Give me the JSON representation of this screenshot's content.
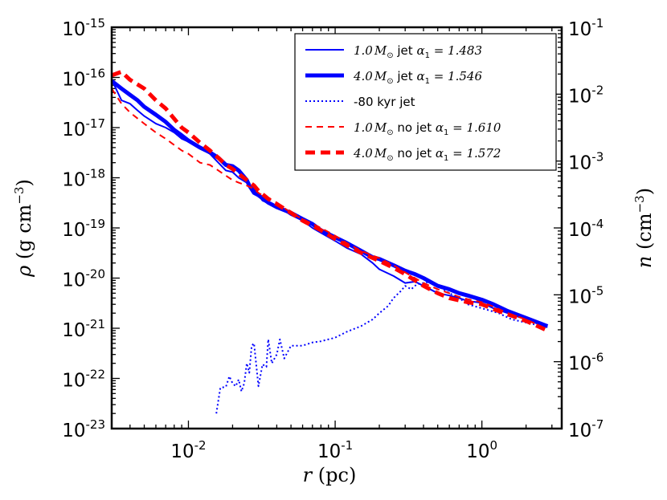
{
  "chart_data": {
    "type": "line",
    "xscale": "log",
    "yscale": "log",
    "xlim": [
      0.003,
      3.5
    ],
    "ylim": [
      1e-23,
      1e-15
    ],
    "y2lim": [
      1e-07,
      0.1
    ],
    "xlabel": "r (pc)",
    "ylabel": "ρ (g cm^-3)",
    "y2label": "n (cm^-3)",
    "x_ticks": [
      {
        "value": 0.01,
        "base": "10",
        "exp": "-2"
      },
      {
        "value": 0.1,
        "base": "10",
        "exp": "-1"
      },
      {
        "value": 1,
        "base": "10",
        "exp": "0"
      }
    ],
    "y_ticks": [
      {
        "value": 1e-15,
        "base": "10",
        "exp": "-15"
      },
      {
        "value": 1e-16,
        "base": "10",
        "exp": "-16"
      },
      {
        "value": 1e-17,
        "base": "10",
        "exp": "-17"
      },
      {
        "value": 1e-18,
        "base": "10",
        "exp": "-18"
      },
      {
        "value": 1e-19,
        "base": "10",
        "exp": "-19"
      },
      {
        "value": 1e-20,
        "base": "10",
        "exp": "-20"
      },
      {
        "value": 1e-21,
        "base": "10",
        "exp": "-21"
      },
      {
        "value": 1e-22,
        "base": "10",
        "exp": "-22"
      },
      {
        "value": 1e-23,
        "base": "10",
        "exp": "-23"
      }
    ],
    "y2_ticks": [
      {
        "value": 0.1,
        "base": "10",
        "exp": "-1"
      },
      {
        "value": 0.01,
        "base": "10",
        "exp": "-2"
      },
      {
        "value": 0.001,
        "base": "10",
        "exp": "-3"
      },
      {
        "value": 0.0001,
        "base": "10",
        "exp": "-4"
      },
      {
        "value": 1e-05,
        "base": "10",
        "exp": "-5"
      },
      {
        "value": 1e-06,
        "base": "10",
        "exp": "-6"
      },
      {
        "value": 1e-07,
        "base": "10",
        "exp": "-7"
      }
    ],
    "legend_position": "top-right",
    "series": [
      {
        "name": "1.0 M⊙ jet α1 = 1.483",
        "color": "#0000ff",
        "style": "solid",
        "weight": "thin",
        "x": [
          0.003,
          0.0035,
          0.004,
          0.0045,
          0.005,
          0.006,
          0.007,
          0.008,
          0.009,
          0.01,
          0.012,
          0.014,
          0.016,
          0.018,
          0.02,
          0.022,
          0.025,
          0.028,
          0.032,
          0.036,
          0.04,
          0.05,
          0.06,
          0.07,
          0.08,
          0.1,
          0.12,
          0.15,
          0.18,
          0.2,
          0.25,
          0.3,
          0.35,
          0.4,
          0.5,
          0.6,
          0.7,
          0.8,
          1.0,
          1.2,
          1.5,
          2.0,
          2.8
        ],
        "y": [
          9e-17,
          3.5e-17,
          3e-17,
          2.2e-17,
          1.7e-17,
          1.2e-17,
          1e-17,
          8e-18,
          6e-18,
          5.2e-18,
          4e-18,
          3e-18,
          2e-18,
          1.4e-18,
          1.3e-18,
          1e-18,
          8e-19,
          6e-19,
          3.5e-19,
          3e-19,
          2.8e-19,
          1.8e-19,
          1.4e-19,
          1e-19,
          8e-20,
          5.5e-20,
          4e-20,
          3e-20,
          2e-20,
          1.5e-20,
          1.1e-20,
          8e-21,
          8.5e-21,
          7e-21,
          5e-21,
          4.5e-21,
          4e-21,
          3.5e-21,
          3.2e-21,
          2.5e-21,
          2e-21,
          1.5e-21,
          1.05e-21
        ]
      },
      {
        "name": "4.0 M⊙ jet α1 = 1.546",
        "color": "#0000ff",
        "style": "solid",
        "weight": "thick",
        "x": [
          0.003,
          0.0035,
          0.004,
          0.0045,
          0.005,
          0.006,
          0.007,
          0.008,
          0.009,
          0.01,
          0.012,
          0.014,
          0.016,
          0.018,
          0.02,
          0.022,
          0.025,
          0.026,
          0.028,
          0.03,
          0.035,
          0.04,
          0.05,
          0.06,
          0.07,
          0.08,
          0.1,
          0.12,
          0.15,
          0.18,
          0.2,
          0.25,
          0.3,
          0.35,
          0.4,
          0.5,
          0.6,
          0.7,
          0.8,
          1.0,
          1.2,
          1.5,
          2.0,
          2.8
        ],
        "y": [
          8.5e-17,
          6e-17,
          4.5e-17,
          3.5e-17,
          2.6e-17,
          1.8e-17,
          1.3e-17,
          9e-18,
          7e-18,
          5.5e-18,
          4e-18,
          3.2e-18,
          2.5e-18,
          1.8e-18,
          1.7e-18,
          1.4e-18,
          9e-19,
          7e-19,
          5e-19,
          4.5e-19,
          3.2e-19,
          2.6e-19,
          2e-19,
          1.5e-19,
          1.2e-19,
          9e-20,
          6.5e-20,
          5e-20,
          3.5e-20,
          2.6e-20,
          2.4e-20,
          1.8e-20,
          1.4e-20,
          1.2e-20,
          1e-20,
          7e-21,
          6e-21,
          5e-21,
          4.5e-21,
          3.7e-21,
          3e-21,
          2.2e-21,
          1.6e-21,
          1.1e-21
        ]
      },
      {
        "name": "-80 kyr jet",
        "color": "#0000ff",
        "style": "dotted",
        "weight": "thin",
        "x": [
          0.0155,
          0.0165,
          0.018,
          0.019,
          0.02,
          0.021,
          0.022,
          0.023,
          0.024,
          0.025,
          0.026,
          0.027,
          0.028,
          0.03,
          0.032,
          0.034,
          0.035,
          0.037,
          0.04,
          0.042,
          0.045,
          0.05,
          0.06,
          0.07,
          0.08,
          0.1,
          0.12,
          0.15,
          0.18,
          0.2,
          0.23,
          0.25,
          0.28,
          0.3,
          0.33,
          0.36,
          0.4,
          0.45,
          0.5,
          0.6,
          0.7,
          0.8,
          1.0,
          1.3,
          1.6,
          2.0,
          2.8
        ],
        "y": [
          2e-23,
          6.5e-23,
          6.8e-23,
          1.1e-22,
          8e-23,
          7e-23,
          9.5e-23,
          5.5e-23,
          8e-23,
          2e-22,
          1.3e-22,
          4.5e-22,
          5e-22,
          7e-23,
          1.9e-22,
          1.7e-22,
          6e-22,
          2e-22,
          3e-22,
          6e-22,
          2.5e-22,
          4.5e-22,
          4.5e-22,
          5.2e-22,
          5.5e-22,
          6.5e-22,
          8.5e-22,
          1.1e-21,
          1.5e-21,
          2e-21,
          2.8e-21,
          4e-21,
          5.5e-21,
          7e-21,
          6e-21,
          7.5e-21,
          8e-21,
          8.5e-21,
          7e-21,
          5e-21,
          4e-21,
          3e-21,
          2.5e-21,
          2e-21,
          1.5e-21,
          1.3e-21,
          1.05e-21
        ]
      },
      {
        "name": "1.0 M⊙ no jet α1 = 1.610",
        "color": "#ff0000",
        "style": "dashed",
        "weight": "thin",
        "x": [
          0.003,
          0.0035,
          0.004,
          0.005,
          0.006,
          0.007,
          0.008,
          0.009,
          0.01,
          0.012,
          0.014,
          0.016,
          0.018,
          0.02,
          0.022,
          0.025,
          0.028,
          0.03,
          0.035,
          0.04,
          0.05,
          0.06,
          0.08,
          0.1,
          0.12,
          0.15,
          0.2,
          0.25,
          0.3,
          0.35,
          0.4,
          0.5,
          0.6,
          0.7,
          0.8,
          1.0,
          1.2,
          1.5,
          2.0,
          2.8
        ],
        "y": [
          6e-17,
          3e-17,
          2e-17,
          1.2e-17,
          8e-18,
          6e-18,
          4.5e-18,
          3.5e-18,
          3e-18,
          2e-18,
          1.8e-18,
          1.4e-18,
          1.1e-18,
          9e-19,
          8e-19,
          7e-19,
          6e-19,
          5e-19,
          3.8e-19,
          3.2e-19,
          2e-19,
          1.5e-19,
          1e-19,
          7e-20,
          5e-20,
          3.5e-20,
          2.5e-20,
          1.8e-20,
          1.3e-20,
          1e-20,
          8e-21,
          6e-21,
          5e-21,
          4.2e-21,
          3.8e-21,
          3.3e-21,
          2.7e-21,
          2e-21,
          1.5e-21,
          9.5e-22
        ]
      },
      {
        "name": "4.0 M⊙ no jet α1 = 1.572",
        "color": "#ff0000",
        "style": "dashed",
        "weight": "thick",
        "x": [
          0.003,
          0.0035,
          0.004,
          0.005,
          0.006,
          0.007,
          0.008,
          0.009,
          0.01,
          0.012,
          0.014,
          0.016,
          0.018,
          0.02,
          0.022,
          0.025,
          0.028,
          0.03,
          0.035,
          0.04,
          0.05,
          0.06,
          0.08,
          0.1,
          0.12,
          0.15,
          0.2,
          0.25,
          0.3,
          0.35,
          0.4,
          0.5,
          0.6,
          0.7,
          0.8,
          1.0,
          1.2,
          1.5,
          2.0,
          2.8
        ],
        "y": [
          1.1e-16,
          1.3e-16,
          9e-17,
          6e-17,
          3.5e-17,
          2.4e-17,
          1.5e-17,
          1e-17,
          8e-18,
          5e-18,
          3.5e-18,
          2.5e-18,
          1.8e-18,
          1.5e-18,
          1.2e-18,
          9e-19,
          7e-19,
          5.5e-19,
          3.8e-19,
          3e-19,
          2e-19,
          1.4e-19,
          9e-20,
          6e-20,
          4.5e-20,
          3.2e-20,
          2.2e-20,
          1.6e-20,
          1.2e-20,
          9e-21,
          7e-21,
          5e-21,
          4e-21,
          3.6e-21,
          3.3e-21,
          3e-21,
          2.4e-21,
          1.9e-21,
          1.4e-21,
          9e-22
        ]
      }
    ]
  },
  "legend": {
    "entries": [
      {
        "mass": "1.0",
        "sun": "M",
        "odot": "⊙",
        "tail": " jet ",
        "alpha": "α",
        "alpha_sub": "1",
        "value": " = 1.483"
      },
      {
        "mass": "4.0",
        "sun": "M",
        "odot": "⊙",
        "tail": " jet ",
        "alpha": "α",
        "alpha_sub": "1",
        "value": " = 1.546"
      },
      {
        "mass": "",
        "sun": "",
        "odot": "",
        "tail": "-80 kyr jet",
        "alpha": "",
        "alpha_sub": "",
        "value": ""
      },
      {
        "mass": "1.0",
        "sun": "M",
        "odot": "⊙",
        "tail": " no jet ",
        "alpha": "α",
        "alpha_sub": "1",
        "value": " = 1.610"
      },
      {
        "mass": "4.0",
        "sun": "M",
        "odot": "⊙",
        "tail": " no jet ",
        "alpha": "α",
        "alpha_sub": "1",
        "value": " = 1.572"
      }
    ]
  },
  "axes_text": {
    "x_var": "r",
    "x_unit": " (pc)",
    "y_var": "ρ",
    "y_unit_pre": " (g cm",
    "y_unit_exp": "−3",
    "y_unit_post": ")",
    "y2_var": "n",
    "y2_unit_pre": " (cm",
    "y2_unit_exp": "−3",
    "y2_unit_post": ")"
  }
}
